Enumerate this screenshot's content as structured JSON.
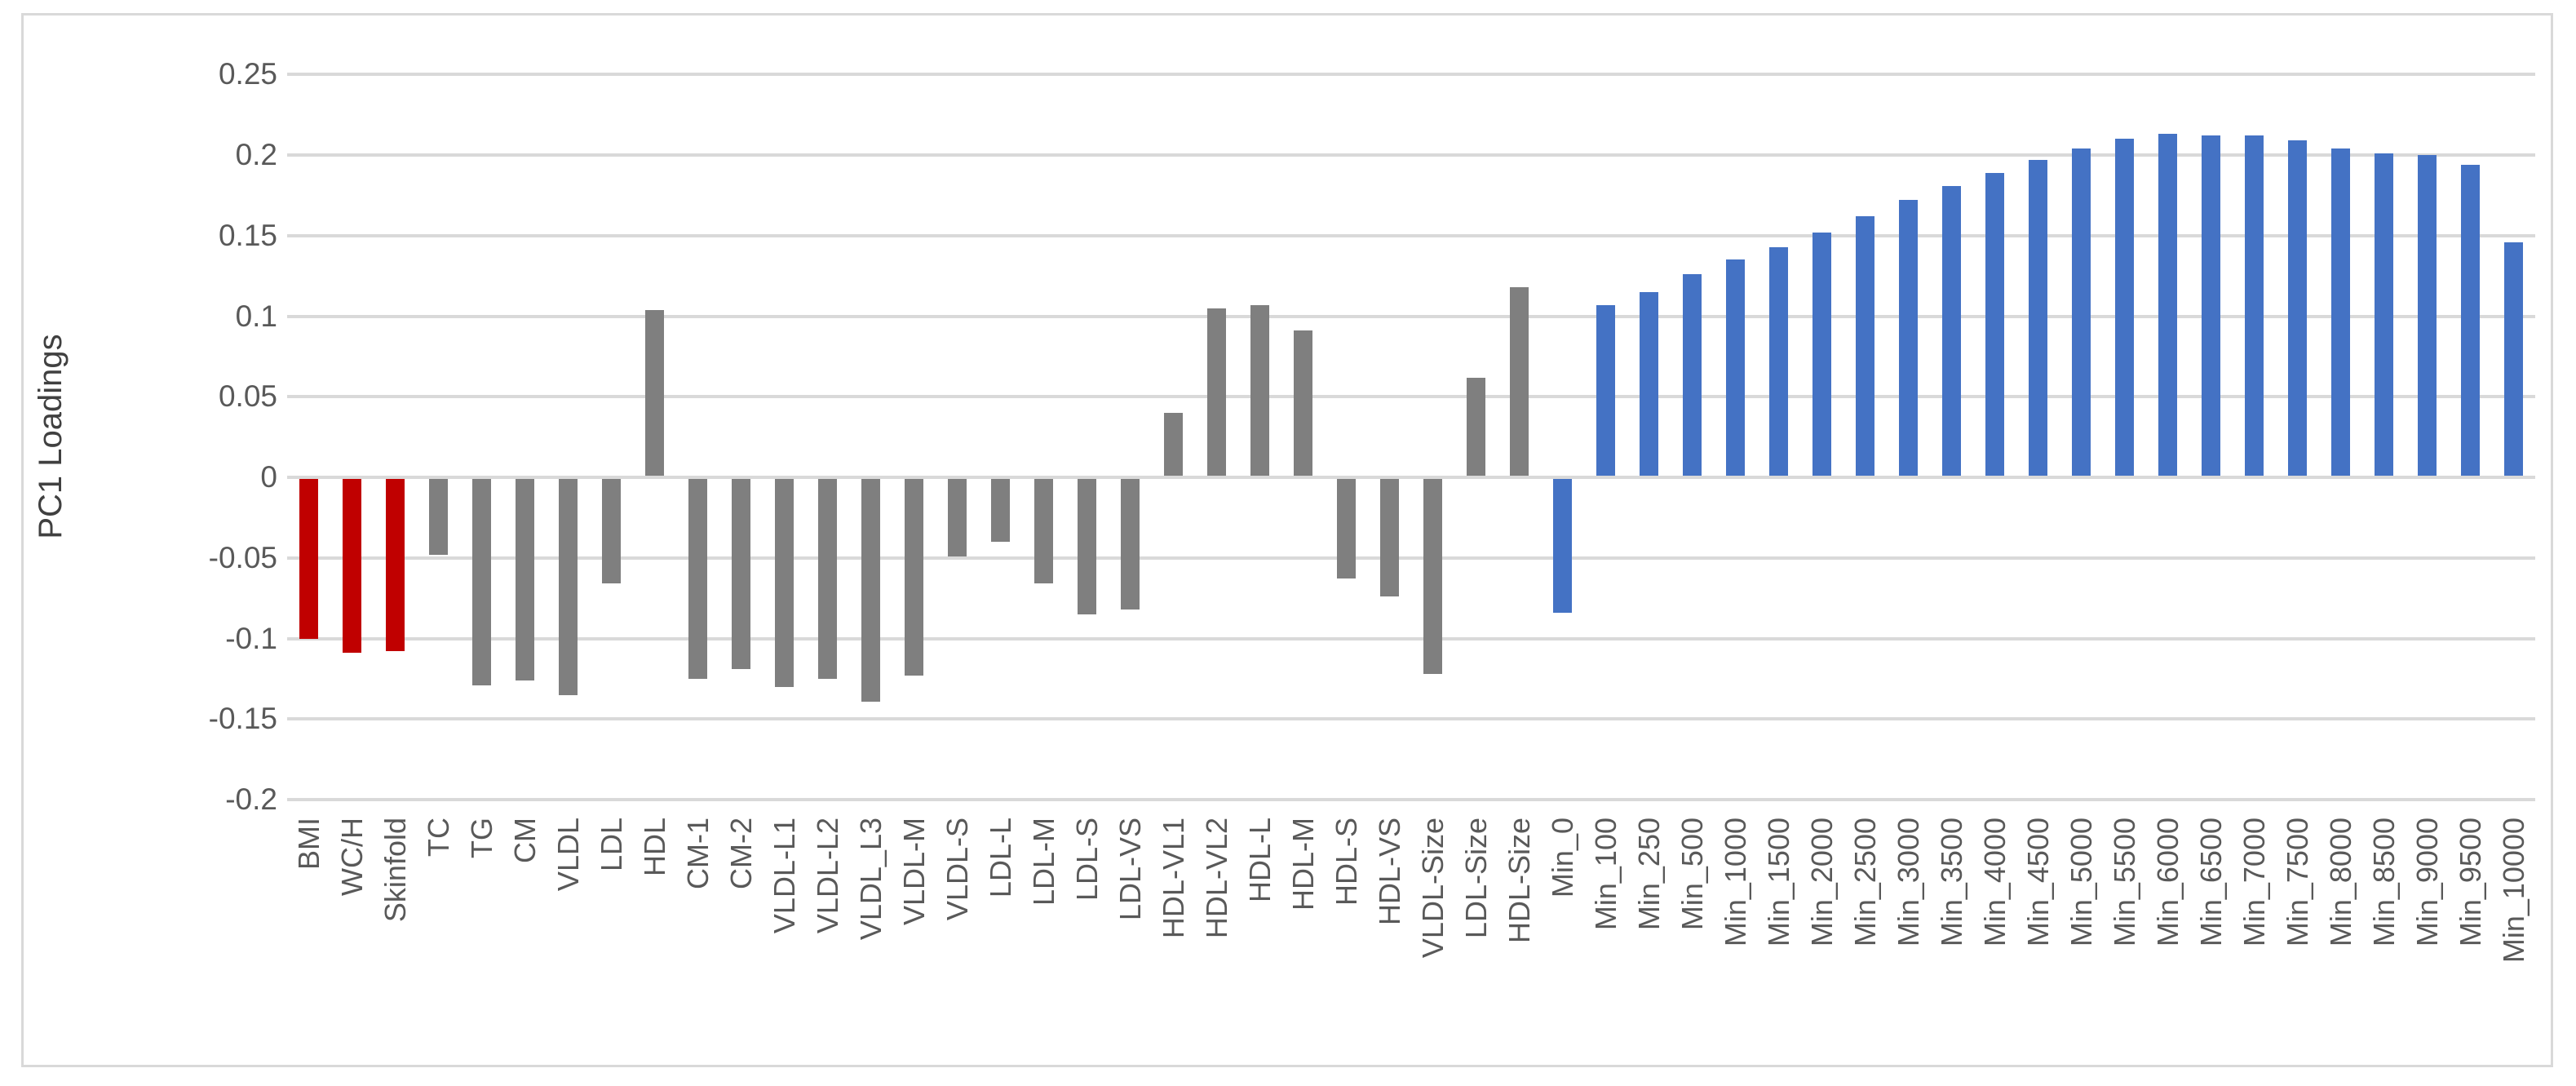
{
  "chart_data": {
    "type": "bar",
    "title": "",
    "ylabel": "PC1 Loadings",
    "xlabel": "",
    "ylim": [
      -0.2,
      0.25
    ],
    "ytick_step": 0.05,
    "grid": true,
    "legend_position": "none",
    "ytick_labels": [
      "0.25",
      "0.2",
      "0.15",
      "0.1",
      "0.05",
      "0",
      "-0.05",
      "-0.1",
      "-0.15",
      "-0.2"
    ],
    "ytick_values": [
      0.25,
      0.2,
      0.15,
      0.1,
      0.05,
      0,
      -0.05,
      -0.1,
      -0.15,
      -0.2
    ],
    "categories": [
      "BMI",
      "WC/H",
      "Skinfold",
      "TC",
      "TG",
      "CM",
      "VLDL",
      "LDL",
      "HDL",
      "CM-1",
      "CM-2",
      "VLDL-L1",
      "VLDL-L2",
      "VLDL_L3",
      "VLDL-M",
      "VLDL-S",
      "LDL-L",
      "LDL-M",
      "LDL-S",
      "LDL-VS",
      "HDL-VL1",
      "HDL-VL2",
      "HDL-L",
      "HDL-M",
      "HDL-S",
      "HDL-VS",
      "VLDL-Size",
      "LDL-Size",
      "HDL-Size",
      "Min_0",
      "Min_100",
      "Min_250",
      "Min_500",
      "Min_1000",
      "Min_1500",
      "Min_2000",
      "Min_2500",
      "Min_3000",
      "Min_3500",
      "Min_4000",
      "Min_4500",
      "Min_5000",
      "Min_5500",
      "Min_6000",
      "Min_6500",
      "Min_7000",
      "Min_7500",
      "Min_8000",
      "Min_8500",
      "Min_9000",
      "Min_9500",
      "Min_10000"
    ],
    "values": [
      -0.1,
      -0.109,
      -0.108,
      -0.048,
      -0.129,
      -0.126,
      -0.135,
      -0.066,
      0.104,
      -0.125,
      -0.119,
      -0.13,
      -0.125,
      -0.139,
      -0.123,
      -0.049,
      -0.04,
      -0.066,
      -0.085,
      -0.082,
      0.04,
      0.105,
      0.107,
      0.091,
      -0.063,
      -0.074,
      -0.122,
      0.062,
      0.118,
      -0.084,
      0.107,
      0.115,
      0.126,
      0.135,
      0.143,
      0.152,
      0.162,
      0.172,
      0.181,
      0.189,
      0.197,
      0.204,
      0.21,
      0.213,
      0.212,
      0.212,
      0.209,
      0.204,
      0.201,
      0.2,
      0.194,
      0.146
    ],
    "color_keys": [
      "red",
      "red",
      "red",
      "gray",
      "gray",
      "gray",
      "gray",
      "gray",
      "gray",
      "gray",
      "gray",
      "gray",
      "gray",
      "gray",
      "gray",
      "gray",
      "gray",
      "gray",
      "gray",
      "gray",
      "gray",
      "gray",
      "gray",
      "gray",
      "gray",
      "gray",
      "gray",
      "gray",
      "gray",
      "blue",
      "blue",
      "blue",
      "blue",
      "blue",
      "blue",
      "blue",
      "blue",
      "blue",
      "blue",
      "blue",
      "blue",
      "blue",
      "blue",
      "blue",
      "blue",
      "blue",
      "blue",
      "blue",
      "blue",
      "blue",
      "blue",
      "blue"
    ],
    "palette": {
      "red": "#C00000",
      "gray": "#7F7F7F",
      "blue": "#4472C4"
    }
  },
  "colors": {
    "gridline": "#D9D9D9",
    "axis_text": "#595959",
    "frame_border": "#D9D9D9",
    "background": "#FFFFFF"
  }
}
